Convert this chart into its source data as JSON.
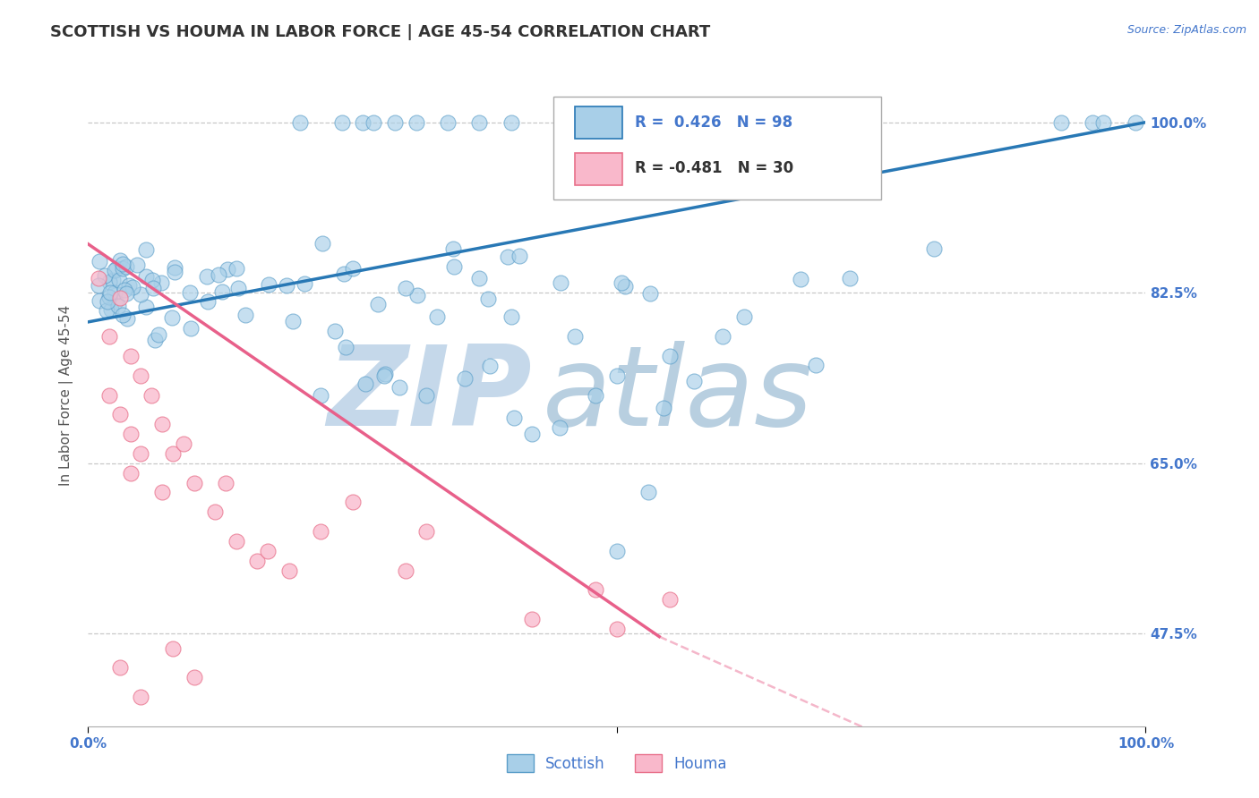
{
  "title": "SCOTTISH VS HOUMA IN LABOR FORCE | AGE 45-54 CORRELATION CHART",
  "source": "Source: ZipAtlas.com",
  "ylabel": "In Labor Force | Age 45-54",
  "xlim": [
    0.0,
    1.0
  ],
  "ylim": [
    0.38,
    1.06
  ],
  "yticks": [
    0.475,
    0.65,
    0.825,
    1.0
  ],
  "ytick_labels": [
    "47.5%",
    "65.0%",
    "82.5%",
    "100.0%"
  ],
  "scottish_R": 0.426,
  "scottish_N": 98,
  "houma_R": -0.481,
  "houma_N": 30,
  "scottish_color": "#a8cfe8",
  "scottish_edge_color": "#5b9ec9",
  "houma_color": "#f9b8cb",
  "houma_edge_color": "#e8708a",
  "scottish_line_color": "#2878b5",
  "houma_line_color": "#e8608a",
  "axis_color": "#4477cc",
  "watermark_zip_color": "#c5d8ea",
  "watermark_atlas_color": "#b8cfe0",
  "background_color": "#ffffff",
  "title_fontsize": 13,
  "axis_label_fontsize": 11,
  "tick_fontsize": 11,
  "legend_fontsize": 12,
  "scottish_line_start_x": 0.0,
  "scottish_line_start_y": 0.795,
  "scottish_line_end_x": 1.0,
  "scottish_line_end_y": 1.0,
  "houma_line_start_x": 0.0,
  "houma_line_start_y": 0.875,
  "houma_line_solid_end_x": 0.54,
  "houma_line_solid_end_y": 0.472,
  "houma_line_dashed_end_x": 1.0,
  "houma_line_dashed_end_y": 0.25
}
